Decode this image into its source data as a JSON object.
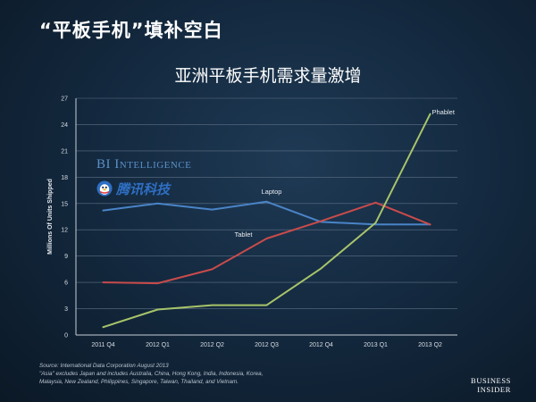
{
  "header": {
    "title": "“平板手机”填补空白"
  },
  "chart_data": {
    "type": "line",
    "title": "亚洲平板手机需求量激增",
    "ylabel": "Millions Of Units Shipped",
    "xlabel": "",
    "categories": [
      "2011 Q4",
      "2012 Q1",
      "2012 Q2",
      "2012 Q3",
      "2012 Q4",
      "2013 Q1",
      "2013 Q2"
    ],
    "ylim": [
      0,
      27
    ],
    "yticks": [
      "0",
      "3",
      "6",
      "9",
      "12",
      "15",
      "18",
      "21",
      "24",
      "27"
    ],
    "grid": true,
    "series": [
      {
        "name": "Laptop",
        "color": "#4a84c8",
        "values": [
          14.2,
          15.0,
          14.3,
          15.2,
          12.9,
          12.6,
          12.6
        ]
      },
      {
        "name": "Tablet",
        "color": "#c94b4b",
        "values": [
          6.0,
          5.9,
          7.5,
          11.0,
          13.0,
          15.1,
          12.6
        ]
      },
      {
        "name": "Phablet",
        "color": "#a8c46a",
        "values": [
          0.9,
          2.9,
          3.4,
          3.4,
          7.6,
          12.8,
          25.2
        ]
      }
    ]
  },
  "branding": {
    "intelligence_label": "BI Intelligence",
    "partner_name": "腾讯科技",
    "partner_icon": "tencent-penguin-icon",
    "publisher_line1": "BUSINESS",
    "publisher_line2": "INSIDER"
  },
  "footer": {
    "source": "Source: International Data Corporation August 2013",
    "note_line1": "\"Asia\" excludes Japan and includes Australia, China, Hong Kong, India, Indonesia, Korea,",
    "note_line2": "Malaysia, New Zealand, Philippines, Singapore, Taiwan, Thailand, and Vietnam."
  }
}
